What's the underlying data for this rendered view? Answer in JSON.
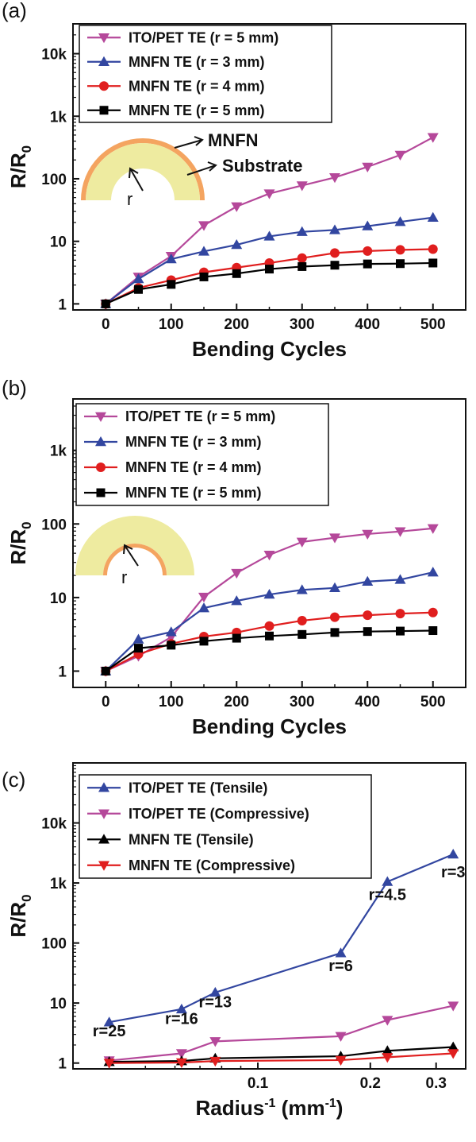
{
  "chart_data": [
    {
      "panel_label": "(a)",
      "type": "line",
      "xlabel": "Bending Cycles",
      "ylabel": "R/R",
      "ylabel_sub": "0",
      "x_scale": "linear",
      "y_scale": "log",
      "xlim": [
        -50,
        550
      ],
      "ylim": [
        0.8,
        30000
      ],
      "x_ticks": [
        0,
        100,
        200,
        300,
        400,
        500
      ],
      "x_tick_labels": [
        "0",
        "100",
        "200",
        "300",
        "400",
        "500"
      ],
      "y_ticks": [
        1,
        10,
        100,
        1000,
        10000
      ],
      "y_tick_labels": [
        "1",
        "10",
        "100",
        "1k",
        "10k"
      ],
      "legend_position": "top-left",
      "x": [
        0,
        50,
        100,
        150,
        200,
        250,
        300,
        350,
        400,
        450,
        500
      ],
      "series": [
        {
          "name": "ITO/PET TE (r = 5 mm)",
          "color": "#b5489a",
          "marker": "triangle-down",
          "values": [
            1,
            2.7,
            5.8,
            18,
            36,
            58,
            78,
            105,
            155,
            240,
            460
          ]
        },
        {
          "name": "MNFN TE (r = 3 mm)",
          "color": "#3246a0",
          "marker": "triangle-up",
          "values": [
            1,
            2.5,
            5.2,
            6.9,
            8.8,
            12,
            14.2,
            15.2,
            17.5,
            20.5,
            24
          ]
        },
        {
          "name": "MNFN TE (r = 4 mm)",
          "color": "#e01e1e",
          "marker": "circle",
          "values": [
            1,
            1.8,
            2.4,
            3.2,
            3.8,
            4.5,
            5.4,
            6.5,
            7,
            7.3,
            7.5
          ]
        },
        {
          "name": "MNFN TE (r = 5 mm)",
          "color": "#000000",
          "marker": "square",
          "values": [
            1,
            1.7,
            2.05,
            2.7,
            3.05,
            3.6,
            3.95,
            4.15,
            4.35,
            4.4,
            4.5
          ]
        }
      ],
      "inset": {
        "labels": [
          "MNFN",
          "Substrate",
          "r"
        ]
      }
    },
    {
      "panel_label": "(b)",
      "type": "line",
      "xlabel": "Bending Cycles",
      "ylabel": "R/R",
      "ylabel_sub": "0",
      "x_scale": "linear",
      "y_scale": "log",
      "xlim": [
        -50,
        550
      ],
      "ylim": [
        0.6,
        5000
      ],
      "x_ticks": [
        0,
        100,
        200,
        300,
        400,
        500
      ],
      "x_tick_labels": [
        "0",
        "100",
        "200",
        "300",
        "400",
        "500"
      ],
      "y_ticks": [
        1,
        10,
        100,
        1000
      ],
      "y_tick_labels": [
        "1",
        "10",
        "100",
        "1k"
      ],
      "legend_position": "top-left",
      "x": [
        0,
        50,
        100,
        150,
        200,
        250,
        300,
        350,
        400,
        450,
        500
      ],
      "series": [
        {
          "name": "ITO/PET TE (r = 5 mm)",
          "color": "#b5489a",
          "marker": "triangle-down",
          "values": [
            1,
            1.6,
            2.9,
            10.2,
            21.5,
            38,
            57,
            65,
            73,
            79,
            87
          ]
        },
        {
          "name": "MNFN TE (r = 3 mm)",
          "color": "#3246a0",
          "marker": "triangle-up",
          "values": [
            1,
            2.7,
            3.4,
            7.2,
            9,
            11,
            12.7,
            13.5,
            16.5,
            17.5,
            22
          ]
        },
        {
          "name": "MNFN TE (r = 4 mm)",
          "color": "#e01e1e",
          "marker": "circle",
          "values": [
            1,
            1.7,
            2.35,
            2.95,
            3.35,
            4.1,
            4.85,
            5.4,
            5.75,
            6.05,
            6.25
          ]
        },
        {
          "name": "MNFN TE (r = 5 mm)",
          "color": "#000000",
          "marker": "square",
          "values": [
            1,
            2.05,
            2.25,
            2.55,
            2.8,
            3,
            3.15,
            3.35,
            3.45,
            3.5,
            3.55
          ]
        }
      ],
      "inset": {
        "labels": [
          "r"
        ]
      }
    },
    {
      "panel_label": "(c)",
      "type": "line",
      "xlabel": "Radius",
      "xlabel_sup1": "-1",
      "xlabel_mid": " (mm",
      "xlabel_sup2": "-1",
      "xlabel_end": ")",
      "ylabel": "R/R",
      "ylabel_sub": "0",
      "x_scale": "log",
      "y_scale": "log",
      "xlim": [
        0.032,
        0.36
      ],
      "ylim": [
        0.8,
        100000
      ],
      "x_ticks": [
        0.1,
        0.2,
        0.3
      ],
      "x_tick_labels": [
        "0.1",
        "0.2",
        "0.3"
      ],
      "y_ticks": [
        1,
        10,
        100,
        1000,
        10000
      ],
      "y_tick_labels": [
        "1",
        "10",
        "100",
        "1k",
        "10k"
      ],
      "legend_position": "top-left",
      "x": [
        0.04,
        0.0625,
        0.0769,
        0.1667,
        0.2222,
        0.3333
      ],
      "series": [
        {
          "name": "ITO/PET TE (Tensile)",
          "color": "#3246a0",
          "marker": "triangle-up",
          "values": [
            4.8,
            7.9,
            15,
            68,
            1050,
            3000
          ]
        },
        {
          "name": "ITO/PET TE (Compressive)",
          "color": "#b5489a",
          "marker": "triangle-down",
          "values": [
            1.1,
            1.45,
            2.3,
            2.8,
            5.2,
            9
          ]
        },
        {
          "name": "MNFN TE (Tensile)",
          "color": "#000000",
          "marker": "triangle-up",
          "values": [
            1.05,
            1.08,
            1.2,
            1.3,
            1.6,
            1.85
          ]
        },
        {
          "name": "MNFN TE (Compressive)",
          "color": "#e01e1e",
          "marker": "triangle-down",
          "values": [
            1.0,
            1.02,
            1.08,
            1.12,
            1.25,
            1.45
          ]
        }
      ],
      "annotations": [
        {
          "text": "r=25",
          "x": 0.04,
          "y": 2.8
        },
        {
          "text": "r=16",
          "x": 0.0625,
          "y": 4.5
        },
        {
          "text": "r=13",
          "x": 0.0769,
          "y": 8.5
        },
        {
          "text": "r=6",
          "x": 0.1667,
          "y": 34
        },
        {
          "text": "r=4.5",
          "x": 0.2222,
          "y": 520
        },
        {
          "text": "r=3",
          "x": 0.3333,
          "y": 1250
        }
      ]
    }
  ]
}
